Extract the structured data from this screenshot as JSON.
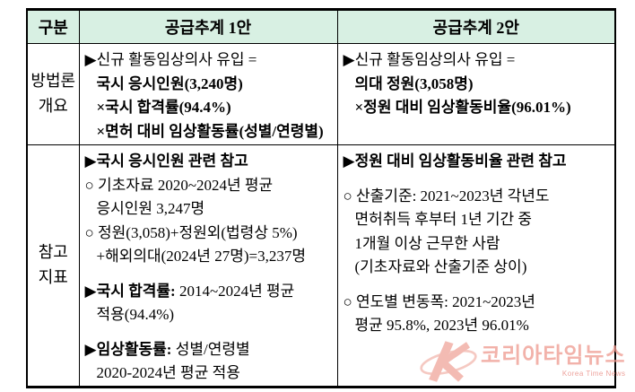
{
  "colors": {
    "header_bg": "#d8f0e3",
    "border": "#000000",
    "text": "#000000",
    "watermark": "#ee9c90"
  },
  "table": {
    "headers": {
      "col0": "구분",
      "col1": "공급추계 1안",
      "col2": "공급추계 2안"
    },
    "rows": [
      {
        "label": "방법론\n개요",
        "cells": [
          {
            "lines": [
              {
                "ind": 0,
                "seg": [
                  {
                    "t": "▶신규 활동임상의사 유입 =",
                    "b": false
                  }
                ]
              },
              {
                "ind": 1,
                "seg": [
                  {
                    "t": "국시 응시인원(3,240명)",
                    "b": true
                  }
                ]
              },
              {
                "ind": 1,
                "seg": [
                  {
                    "t": "×국시 합격률(94.4%)",
                    "b": true
                  }
                ]
              },
              {
                "ind": 1,
                "seg": [
                  {
                    "t": "×면허 대비 임상활동률(성별/연령별)",
                    "b": true
                  }
                ]
              }
            ]
          },
          {
            "lines": [
              {
                "ind": 0,
                "seg": [
                  {
                    "t": "▶신규 활동임상의사 유입 =",
                    "b": false
                  }
                ]
              },
              {
                "ind": 1,
                "seg": [
                  {
                    "t": "의대 정원(3,058명)",
                    "b": true
                  }
                ]
              },
              {
                "ind": 1,
                "seg": [
                  {
                    "t": "×정원 대비 임상활동비율(96.01%)",
                    "b": true
                  }
                ]
              }
            ]
          }
        ]
      },
      {
        "label": "참고\n지표",
        "cells": [
          {
            "lines": [
              {
                "ind": 0,
                "seg": [
                  {
                    "t": "▶국시 응시인원 관련 참고",
                    "b": true
                  }
                ]
              },
              {
                "ind": 0,
                "seg": [
                  {
                    "t": "○ 기초자료 2020~2024년 평균",
                    "b": false
                  }
                ]
              },
              {
                "ind": 1,
                "seg": [
                  {
                    "t": "응시인원 3,247명",
                    "b": false
                  }
                ]
              },
              {
                "ind": 0,
                "seg": [
                  {
                    "t": "○ 정원(3,058)+정원외(법령상 5%)",
                    "b": false
                  }
                ]
              },
              {
                "ind": 1,
                "seg": [
                  {
                    "t": "+해외의대(2024년 27명)=3,237명",
                    "b": false
                  }
                ]
              },
              {
                "ind": 0,
                "gap": true,
                "seg": [
                  {
                    "t": "▶국시 합격률:",
                    "b": true
                  },
                  {
                    "t": " 2014~2024년 평균",
                    "b": false
                  }
                ]
              },
              {
                "ind": 1,
                "seg": [
                  {
                    "t": "적용(94.4%)",
                    "b": false
                  }
                ]
              },
              {
                "ind": 0,
                "gap": true,
                "seg": [
                  {
                    "t": "▶임상활동률:",
                    "b": true
                  },
                  {
                    "t": " 성별/연령별",
                    "b": false
                  }
                ]
              },
              {
                "ind": 1,
                "seg": [
                  {
                    "t": "2020-2024년 평균 적용",
                    "b": false
                  }
                ]
              }
            ]
          },
          {
            "lines": [
              {
                "ind": 0,
                "seg": [
                  {
                    "t": "▶정원 대비 임상활동비율 관련 참고",
                    "b": true
                  }
                ]
              },
              {
                "ind": 0,
                "gap": true,
                "seg": [
                  {
                    "t": "○ 산출기준: 2021~2023년 각년도",
                    "b": false
                  }
                ]
              },
              {
                "ind": 1,
                "seg": [
                  {
                    "t": "면허취득 후부터 1년 기간 중",
                    "b": false
                  }
                ]
              },
              {
                "ind": 1,
                "seg": [
                  {
                    "t": "1개월 이상 근무한 사람",
                    "b": false
                  }
                ]
              },
              {
                "ind": 1,
                "seg": [
                  {
                    "t": "(기초자료와 산출기준 상이)",
                    "b": false
                  }
                ]
              },
              {
                "ind": 0,
                "gap": true,
                "seg": [
                  {
                    "t": "○ 연도별 변동폭: 2021~2023년",
                    "b": false
                  }
                ]
              },
              {
                "ind": 1,
                "seg": [
                  {
                    "t": "평균 95.8%, 2023년 96.01%",
                    "b": false
                  }
                ]
              }
            ]
          }
        ]
      }
    ]
  },
  "watermark": {
    "title": "코리아타임뉴스",
    "subtitle": "Korea Time News"
  }
}
